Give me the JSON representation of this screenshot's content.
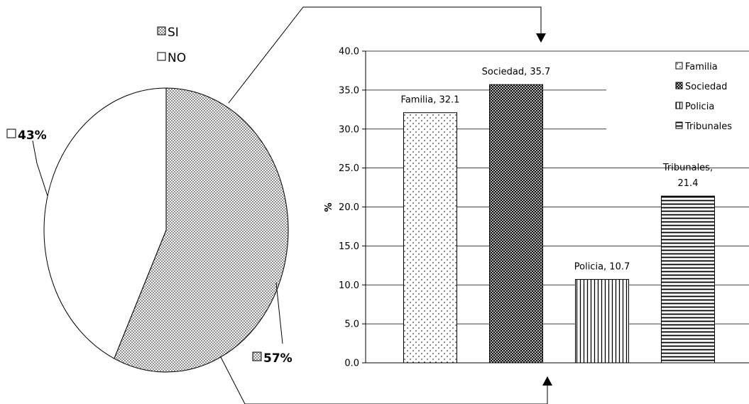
{
  "chart_data": [
    {
      "type": "pie",
      "legend": [
        "SI",
        "NO"
      ],
      "slices": [
        {
          "name": "SI",
          "value": 57,
          "label": "57%",
          "pattern": "crosshatch-light"
        },
        {
          "name": "NO",
          "value": 43,
          "label": "43%",
          "pattern": "none"
        }
      ],
      "legend_position": "top-center"
    },
    {
      "type": "bar",
      "categories": [
        "Familia",
        "Sociedad",
        "Policia",
        "Tribunales"
      ],
      "values": [
        32.1,
        35.7,
        10.7,
        21.4
      ],
      "data_labels": [
        "Familia, 32.1",
        "Sociedad, 35.7",
        "Policia, 10.7",
        "Tribunales,|21.4"
      ],
      "legend": [
        "Familia",
        "Sociedad",
        "Policia",
        "Tribunales"
      ],
      "ylabel": "%",
      "ylim": [
        0,
        40
      ],
      "ytick_labels": [
        "0.0",
        "5.0",
        "10.0",
        "15.0",
        "20.0",
        "25.0",
        "30.0",
        "35.0",
        "40.0"
      ],
      "grid": true,
      "legend_position": "top-right",
      "patterns": [
        "dots",
        "crosshatch-dark",
        "vertical-lines",
        "horizontal-lines"
      ]
    }
  ]
}
